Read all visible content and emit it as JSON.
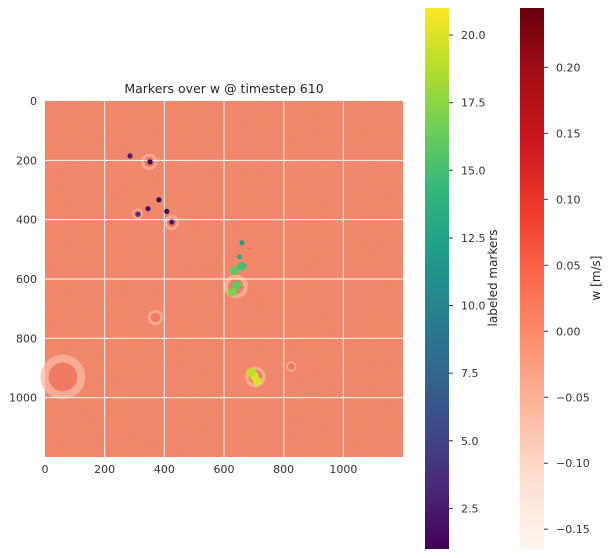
{
  "chart_data": [
    {
      "type": "heatmap",
      "title": "Markers over w @ timestep 610",
      "xlabel": "",
      "ylabel": "",
      "xlim": [
        0,
        1200
      ],
      "ylim": [
        1200,
        0
      ],
      "y_axis_inverted": true,
      "x_ticks": [
        0,
        200,
        400,
        600,
        800,
        1000
      ],
      "y_ticks": [
        0,
        200,
        400,
        600,
        800,
        1000
      ],
      "grid": true,
      "background_color": "#f4876a",
      "features": [
        {
          "kind": "cell",
          "x": 350,
          "y": 205,
          "r": 22
        },
        {
          "kind": "cell",
          "x": 425,
          "y": 410,
          "r": 20
        },
        {
          "kind": "cell",
          "x": 640,
          "y": 625,
          "r": 32
        },
        {
          "kind": "cell",
          "x": 705,
          "y": 930,
          "r": 28
        },
        {
          "kind": "cell",
          "x": 370,
          "y": 730,
          "r": 20
        },
        {
          "kind": "cell",
          "x": 825,
          "y": 895,
          "r": 14
        },
        {
          "kind": "cell",
          "x": 60,
          "y": 930,
          "r": 60
        },
        {
          "kind": "cell",
          "x": 310,
          "y": 380,
          "r": 14
        }
      ],
      "markers": [
        {
          "x": 285,
          "y": 185,
          "label": 3
        },
        {
          "x": 352,
          "y": 205,
          "label": 1
        },
        {
          "x": 312,
          "y": 382,
          "label": 4
        },
        {
          "x": 345,
          "y": 363,
          "label": 2
        },
        {
          "x": 382,
          "y": 333,
          "label": 1
        },
        {
          "x": 408,
          "y": 372,
          "label": 1
        },
        {
          "x": 425,
          "y": 408,
          "label": 2
        },
        {
          "x": 660,
          "y": 478,
          "label": 12
        },
        {
          "x": 652,
          "y": 525,
          "label": 13
        },
        {
          "x": 635,
          "y": 572,
          "label": 16
        },
        {
          "x": 660,
          "y": 557,
          "label": 15
        },
        {
          "x": 642,
          "y": 622,
          "label": 16
        },
        {
          "x": 628,
          "y": 645,
          "label": 17
        },
        {
          "x": 702,
          "y": 927,
          "label": 20
        },
        {
          "x": 690,
          "y": 915,
          "label": 19
        },
        {
          "x": 712,
          "y": 945,
          "label": 20
        }
      ]
    },
    {
      "type": "colorbar",
      "label": "labeled markers",
      "colormap": "viridis",
      "range": [
        1,
        21
      ],
      "ticks": [
        "2.5",
        "5.0",
        "7.5",
        "10.0",
        "12.5",
        "15.0",
        "17.5",
        "20.0"
      ],
      "colors": [
        "#440154",
        "#482878",
        "#3e4a89",
        "#31688e",
        "#26828e",
        "#1f9e89",
        "#35b779",
        "#6ece58",
        "#b5de2b",
        "#fde725"
      ]
    },
    {
      "type": "colorbar",
      "label": "w [m/s]",
      "colormap": "Reds",
      "range": [
        -0.165,
        0.245
      ],
      "ticks": [
        "−0.15",
        "−0.10",
        "−0.05",
        "0.00",
        "0.05",
        "0.10",
        "0.15",
        "0.20"
      ],
      "colors": [
        "#fff5f0",
        "#fee0d2",
        "#fcbba1",
        "#fc9272",
        "#fb6a4a",
        "#ef3b2c",
        "#cb181d",
        "#a50f15",
        "#67000d"
      ]
    }
  ]
}
